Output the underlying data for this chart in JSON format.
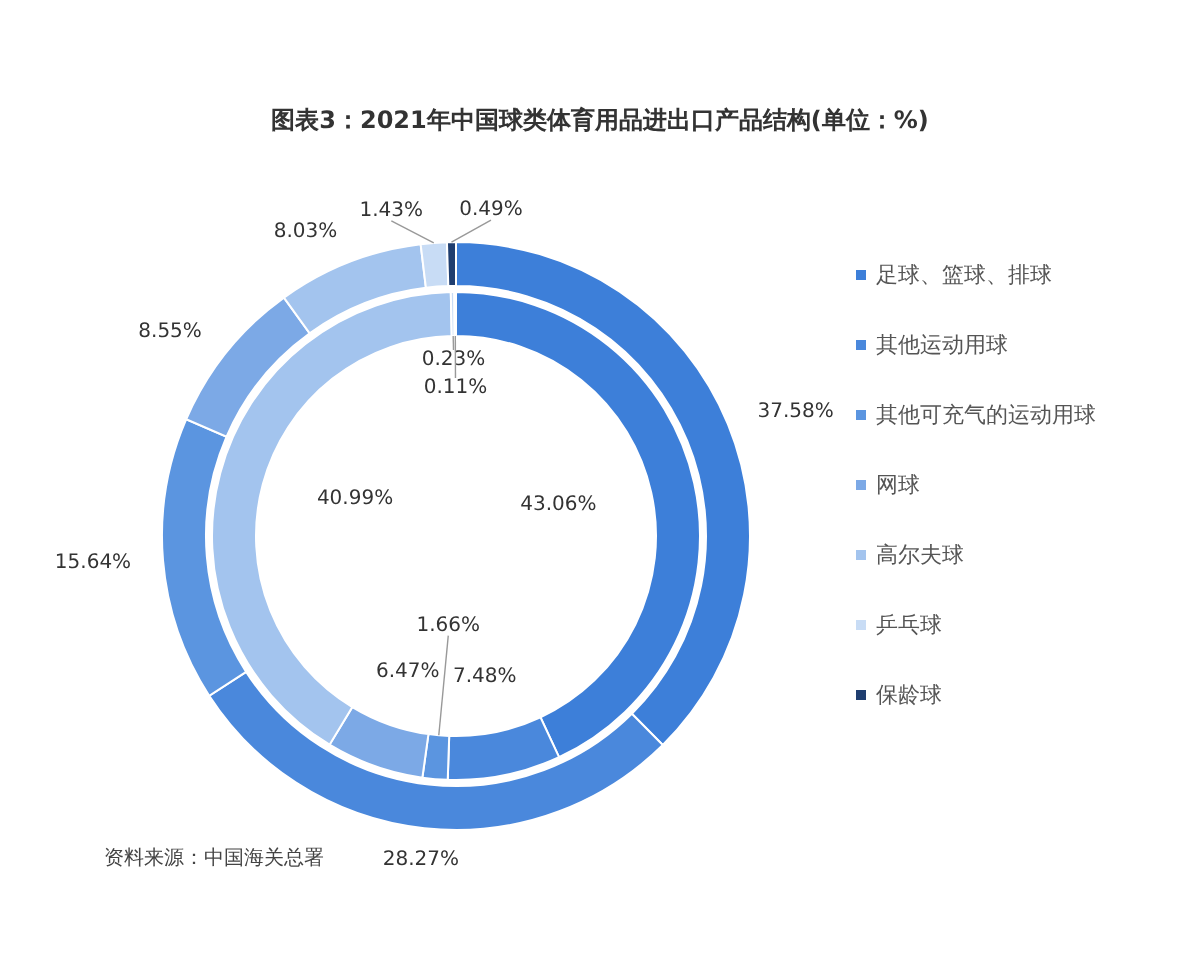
{
  "chart_data": {
    "type": "donut",
    "title": "图表3：2021年中国球类体育用品进出口产品结构(单位：%)",
    "categories": [
      "足球、篮球、排球",
      "其他运动用球",
      "其他可充气的运动用球",
      "网球",
      "高尔夫球",
      "乒乓球",
      "保龄球"
    ],
    "colors": [
      "#3d7fd9",
      "#4a88dc",
      "#5b95e0",
      "#7ca9e6",
      "#a3c4ee",
      "#c8dcf5",
      "#1f3e70"
    ],
    "series": [
      {
        "values": [
          37.58,
          28.27,
          15.64,
          8.55,
          8.03,
          1.43,
          0.49
        ],
        "value_labels": [
          "37.58%",
          "28.27%",
          "15.64%",
          "8.55%",
          "8.03%",
          "1.43%",
          "0.49%"
        ]
      },
      {
        "values": [
          43.06,
          7.48,
          1.66,
          6.47,
          40.99,
          0.23,
          0.11
        ],
        "value_labels": [
          "43.06%",
          "7.48%",
          "1.66%",
          "6.47%",
          "40.99%",
          "0.23%",
          "0.11%"
        ]
      }
    ],
    "legend": "right",
    "annotations": [
      "资料来源：中国海关总署"
    ]
  }
}
